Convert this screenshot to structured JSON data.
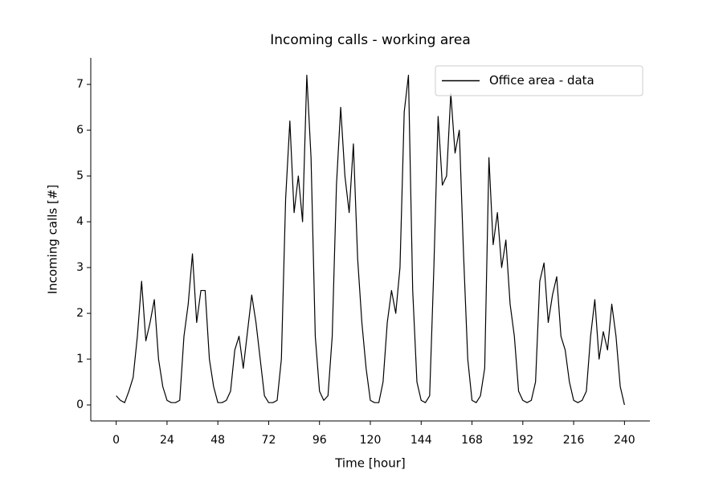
{
  "chart_data": {
    "type": "line",
    "title": "Incoming calls - working area",
    "x_label": "Time [hour]",
    "y_label": "Incoming calls [#]",
    "x": [
      0,
      2,
      4,
      6,
      8,
      10,
      12,
      14,
      16,
      18,
      20,
      22,
      24,
      26,
      28,
      30,
      32,
      34,
      36,
      38,
      40,
      42,
      44,
      46,
      48,
      50,
      52,
      54,
      56,
      58,
      60,
      62,
      64,
      66,
      68,
      70,
      72,
      74,
      76,
      78,
      80,
      82,
      84,
      86,
      88,
      90,
      92,
      94,
      96,
      98,
      100,
      102,
      104,
      106,
      108,
      110,
      112,
      114,
      116,
      118,
      120,
      122,
      124,
      126,
      128,
      130,
      132,
      134,
      136,
      138,
      140,
      142,
      144,
      146,
      148,
      150,
      152,
      154,
      156,
      158,
      160,
      162,
      164,
      166,
      168,
      170,
      172,
      174,
      176,
      178,
      180,
      182,
      184,
      186,
      188,
      190,
      192,
      194,
      196,
      198,
      200,
      202,
      204,
      206,
      208,
      210,
      212,
      214,
      216,
      218,
      220,
      222,
      224,
      226,
      228,
      230,
      232,
      234,
      236,
      238,
      240
    ],
    "series": [
      {
        "name": "Office area - data",
        "color": "#000000",
        "values": [
          0.2,
          0.1,
          0.05,
          0.3,
          0.6,
          1.5,
          2.7,
          1.4,
          1.8,
          2.3,
          1.0,
          0.4,
          0.1,
          0.05,
          0.05,
          0.1,
          1.5,
          2.2,
          3.3,
          1.8,
          2.5,
          2.5,
          1.0,
          0.4,
          0.05,
          0.05,
          0.1,
          0.3,
          1.2,
          1.5,
          0.8,
          1.6,
          2.4,
          1.8,
          1.0,
          0.2,
          0.05,
          0.05,
          0.1,
          1.0,
          4.5,
          6.2,
          4.2,
          5.0,
          4.0,
          7.2,
          5.4,
          1.5,
          0.3,
          0.1,
          0.2,
          1.5,
          4.8,
          6.5,
          5.0,
          4.2,
          5.7,
          3.2,
          1.8,
          0.8,
          0.1,
          0.05,
          0.05,
          0.5,
          1.8,
          2.5,
          2.0,
          3.0,
          6.4,
          7.2,
          2.5,
          0.5,
          0.1,
          0.05,
          0.2,
          3.0,
          6.3,
          4.8,
          5.0,
          6.8,
          5.5,
          6.0,
          3.3,
          1.0,
          0.1,
          0.05,
          0.2,
          0.8,
          5.4,
          3.5,
          4.2,
          3.0,
          3.6,
          2.2,
          1.5,
          0.3,
          0.1,
          0.05,
          0.1,
          0.5,
          2.7,
          3.1,
          1.8,
          2.4,
          2.8,
          1.5,
          1.2,
          0.5,
          0.1,
          0.05,
          0.1,
          0.3,
          1.5,
          2.3,
          1.0,
          1.6,
          1.2,
          2.2,
          1.5,
          0.4,
          0.0
        ]
      }
    ],
    "xlim": [
      -12,
      252
    ],
    "ylim": [
      -0.35,
      7.58
    ],
    "xticks": [
      0,
      24,
      48,
      72,
      96,
      120,
      144,
      168,
      192,
      216,
      240
    ],
    "yticks": [
      0,
      1,
      2,
      3,
      4,
      5,
      6,
      7
    ],
    "legend": "upper right"
  }
}
